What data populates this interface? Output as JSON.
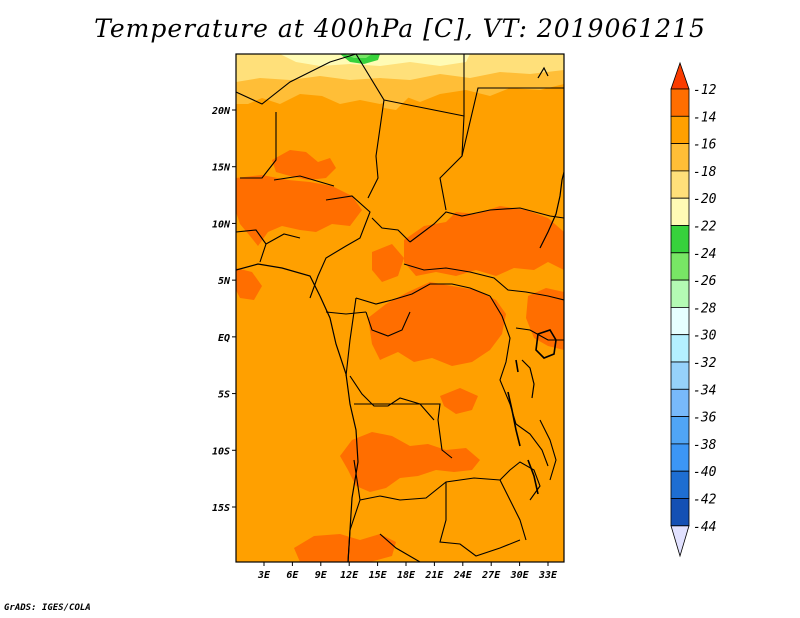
{
  "title": "Temperature at 400hPa [C], VT: 2019061215",
  "credit": "GrADS: IGES/COLA",
  "map": {
    "lon_range": [
      0,
      35
    ],
    "lat_range": [
      -20,
      25
    ],
    "background_color": "#ffa000",
    "lon_ticks": [
      "3E",
      "6E",
      "9E",
      "12E",
      "15E",
      "18E",
      "21E",
      "24E",
      "27E",
      "30E",
      "33E"
    ],
    "lat_ticks": [
      "20N",
      "15N",
      "10N",
      "5N",
      "EQ",
      "5S",
      "10S",
      "15S"
    ]
  },
  "colorbar": {
    "labels": [
      "-12",
      "-14",
      "-16",
      "-18",
      "-20",
      "-22",
      "-24",
      "-26",
      "-28",
      "-30",
      "-32",
      "-34",
      "-36",
      "-38",
      "-40",
      "-42",
      "-44"
    ],
    "colors": [
      "#fa3c00",
      "#ff6e00",
      "#ffa000",
      "#ffbe37",
      "#ffe07a",
      "#fffbb5",
      "#37d23c",
      "#78e665",
      "#b4fab4",
      "#e6ffff",
      "#b4f0ff",
      "#96d2fa",
      "#78b9fa",
      "#50a5f5",
      "#3c96f5",
      "#1e6ed2",
      "#1450b4",
      "#0a0f78",
      "#e1e1ff"
    ]
  }
}
